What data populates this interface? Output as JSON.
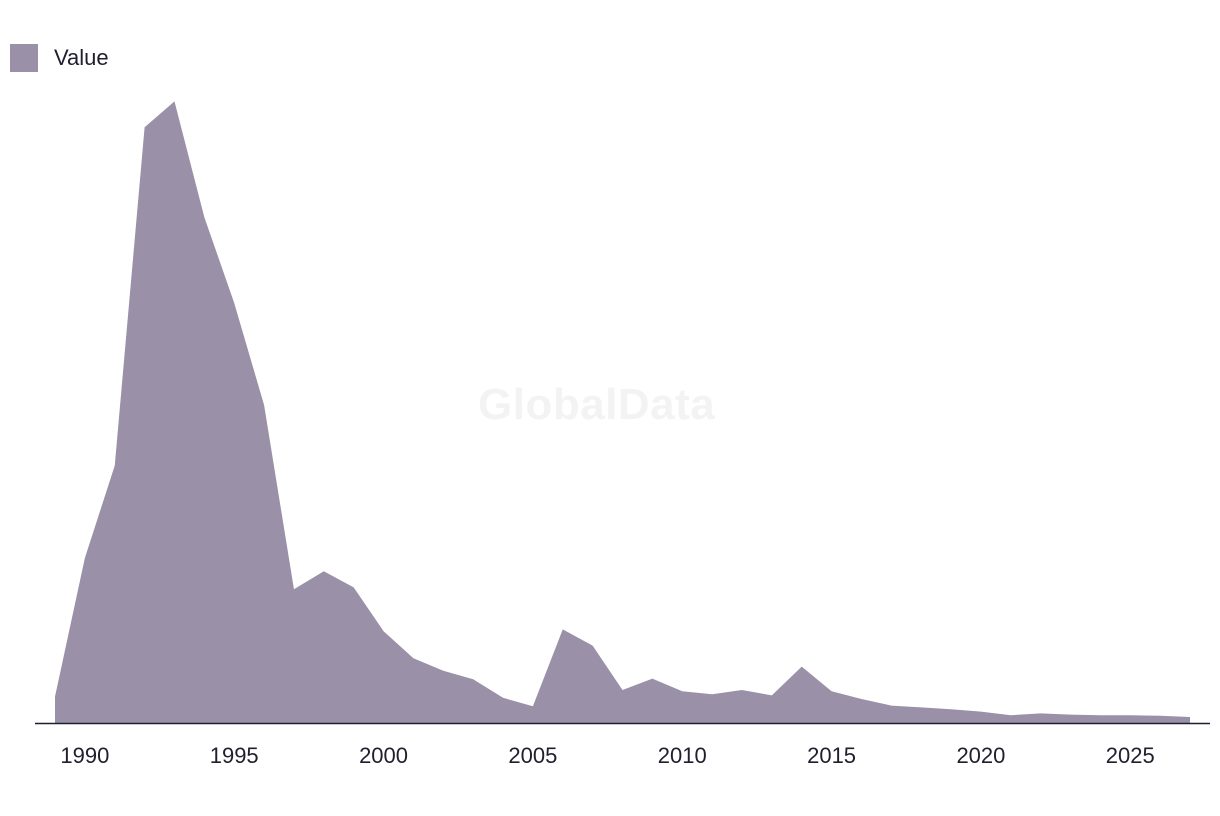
{
  "legend": {
    "label": "Value",
    "color": "#9a90a8"
  },
  "watermark": "GlobalData",
  "colors": {
    "area": "#9a90a8",
    "axis": "#1f1f2e",
    "text": "#1f1f2e"
  },
  "chart_data": {
    "type": "area",
    "x": [
      1989,
      1990,
      1991,
      1992,
      1993,
      1994,
      1995,
      1996,
      1997,
      1998,
      1999,
      2000,
      2001,
      2002,
      2003,
      2004,
      2005,
      2006,
      2007,
      2008,
      2009,
      2010,
      2011,
      2012,
      2013,
      2014,
      2015,
      2016,
      2017,
      2018,
      2019,
      2020,
      2021,
      2022,
      2023,
      2024,
      2025,
      2026,
      2027
    ],
    "series": [
      {
        "name": "Value",
        "values": [
          4.4,
          27.5,
          42.9,
          99.3,
          103.6,
          84.3,
          70.0,
          53.0,
          22.3,
          25.3,
          22.6,
          15.3,
          10.8,
          8.7,
          7.3,
          4.2,
          2.8,
          15.6,
          12.9,
          5.5,
          7.4,
          5.3,
          4.8,
          5.5,
          4.6,
          9.4,
          5.3,
          4.0,
          2.9,
          2.6,
          2.3,
          1.9,
          1.3,
          1.6,
          1.4,
          1.3,
          1.3,
          1.2,
          1.0
        ]
      }
    ],
    "xticks": [
      1990,
      1995,
      2000,
      2005,
      2010,
      2015,
      2020,
      2025
    ],
    "xlim": [
      1989,
      2027
    ],
    "ylim": [
      0,
      110
    ],
    "grid": false,
    "legend_position": "top-left"
  }
}
